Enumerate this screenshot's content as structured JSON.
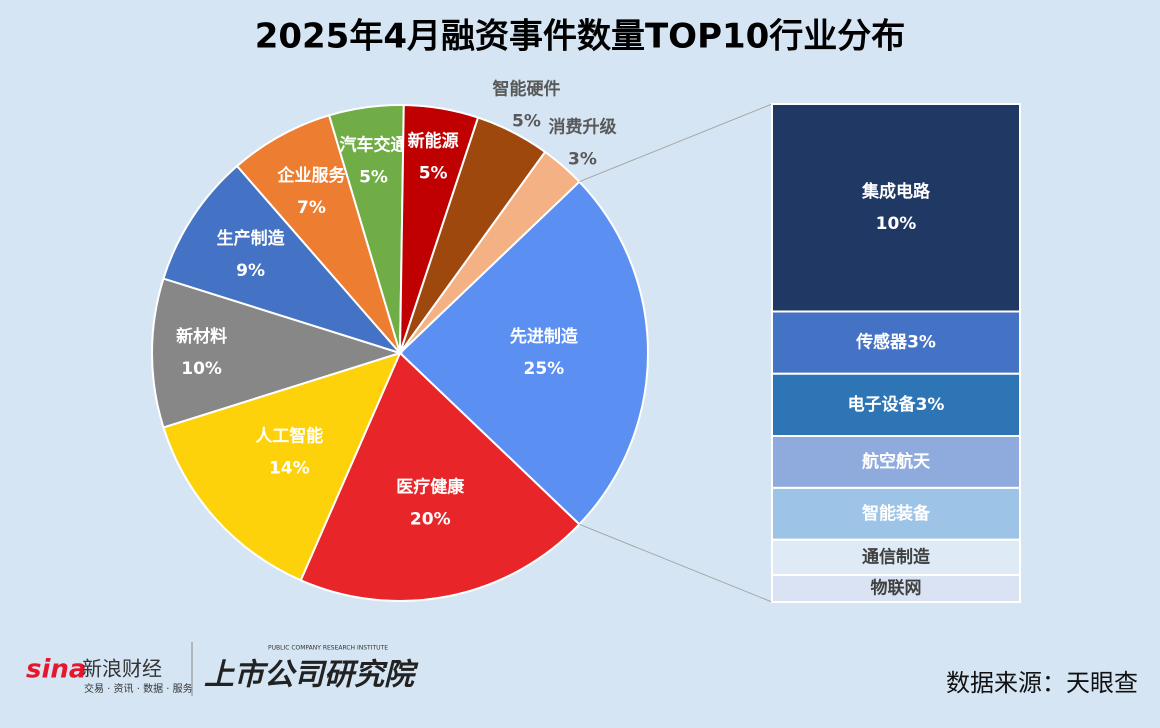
{
  "chart_data": {
    "type": "pie-of-bar",
    "title": "2025年4月融资事件数量TOP10行业分布",
    "categories": [
      "先进制造",
      "医疗健康",
      "人工智能",
      "新材料",
      "生产制造",
      "企业服务",
      "汽车交通",
      "新能源",
      "智能硬件",
      "消费升级"
    ],
    "values": [
      25,
      20,
      14,
      10,
      9,
      7,
      5,
      5,
      5,
      3
    ],
    "value_labels": [
      "25%",
      "20%",
      "14%",
      "10%",
      "9%",
      "7%",
      "5%",
      "5%",
      "5%",
      "3%"
    ],
    "colors": [
      "#5b8ff2",
      "#e8262a",
      "#fdd20a",
      "#878787",
      "#4472c4",
      "#ed7d31",
      "#70ad47",
      "#c00000",
      "#9e480e",
      "#f4b183"
    ],
    "breakdown": {
      "categories": [
        "集成电路",
        "传感器",
        "电子设备",
        "航空航天",
        "智能装备",
        "通信制造",
        "物联网"
      ],
      "values": [
        10,
        3,
        3,
        2.5,
        2.5,
        1.7,
        1.3
      ],
      "value_labels": [
        "10%",
        "3%",
        "3%",
        null,
        null,
        null,
        null
      ],
      "colors": [
        "#1f3864",
        "#4472c4",
        "#2e75b6",
        "#8faadc",
        "#9dc3e6",
        "#deebf7",
        "#dae3f3"
      ]
    }
  },
  "footer": {
    "brand": "sina",
    "brand_name": "新浪财经",
    "brand_tagline": "交易 · 资讯 · 数据 · 服务",
    "institute": "上市公司研究院",
    "institute_en": "PUBLIC COMPANY RESEARCH INSTITUTE",
    "source": "数据来源：天眼查"
  }
}
